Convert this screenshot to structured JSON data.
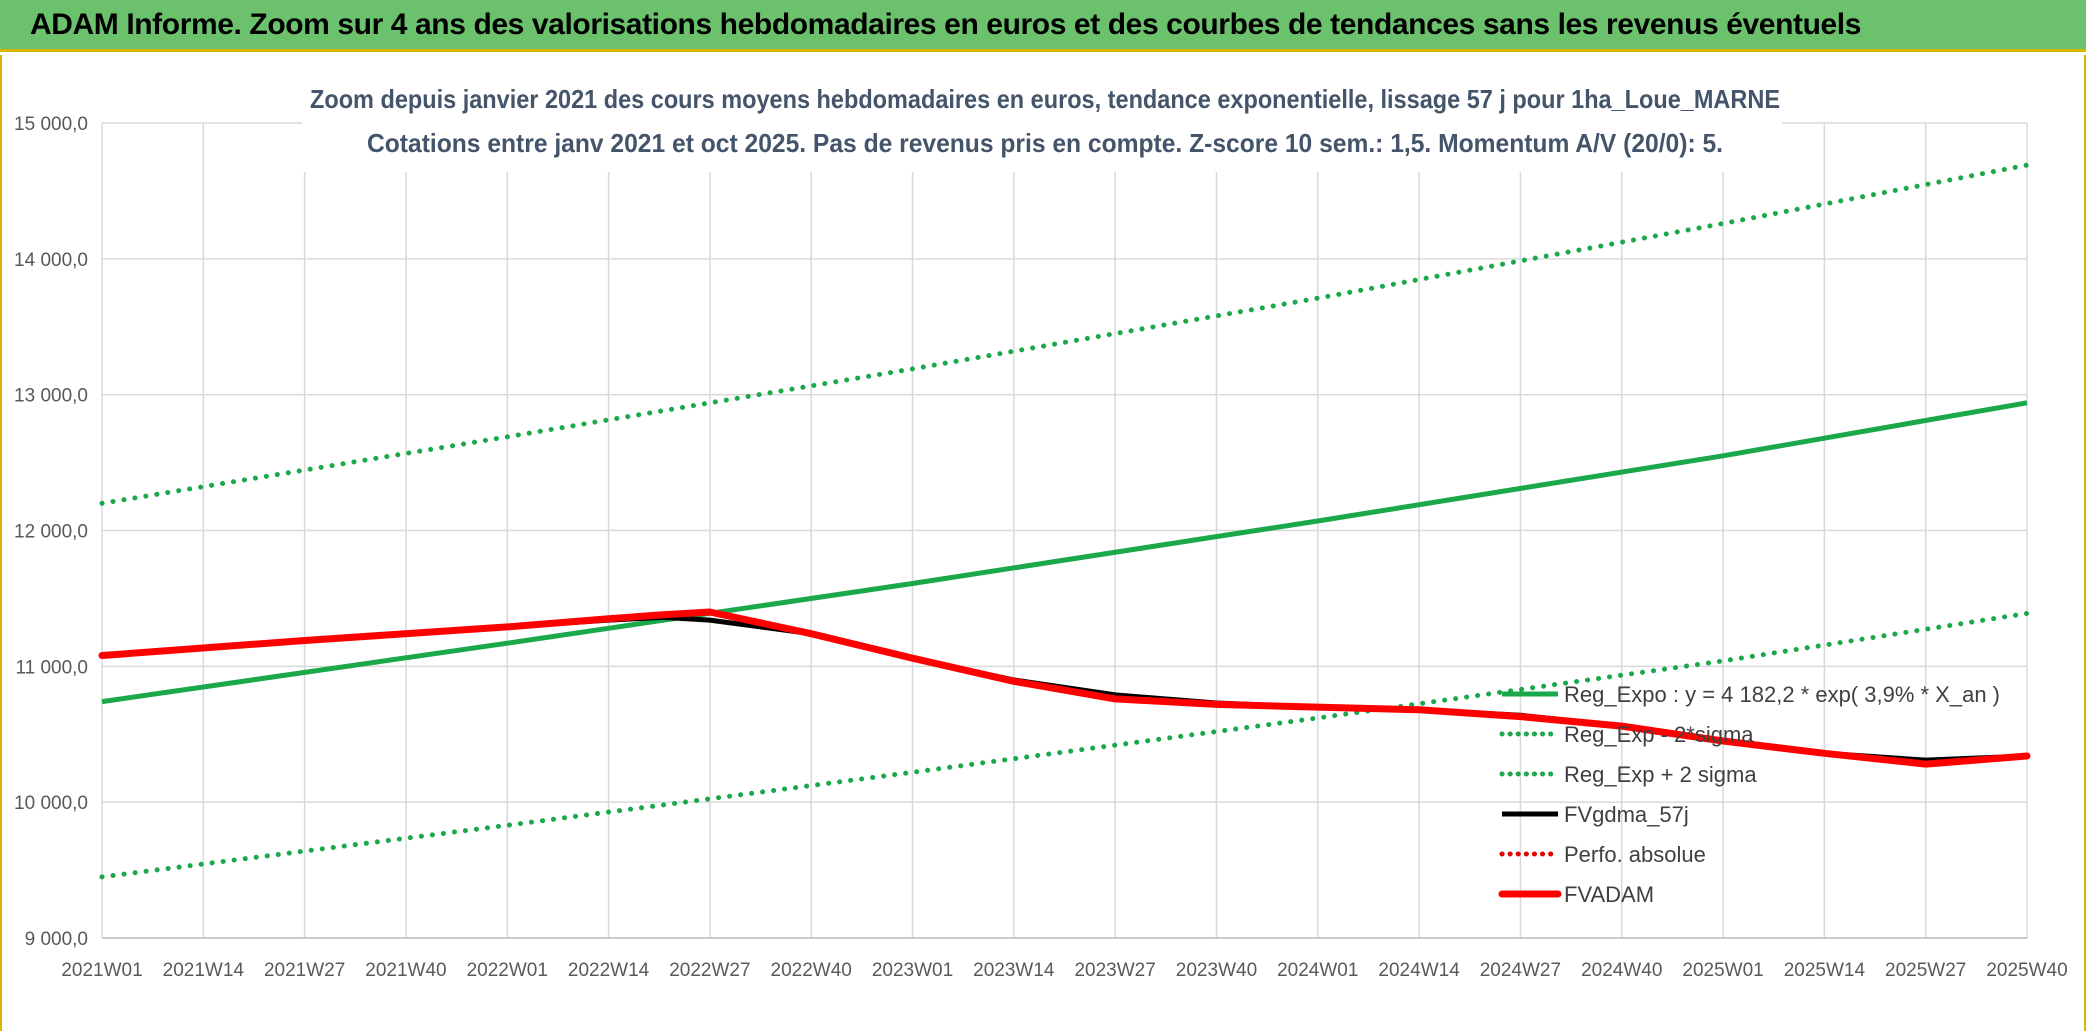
{
  "header": {
    "title": "ADAM Informe. Zoom sur 4 ans des valorisations hebdomadaires en euros et des courbes de tendances sans les revenus éventuels"
  },
  "chart_data": {
    "type": "line",
    "title": "Zoom depuis janvier 2021 des cours moyens hebdomadaires en euros, tendance exponentielle, lissage 57 j pour 1ha_Loue_MARNE",
    "subtitle": "Cotations entre janv 2021 et oct 2025. Pas de revenus pris en compte. Z-score 10 sem.: 1,5. Momentum A/V (20/0): 5.",
    "xlabel": "",
    "ylabel": "",
    "ylim": [
      9000,
      15000
    ],
    "y_ticks": [
      9000,
      10000,
      11000,
      12000,
      13000,
      14000,
      15000
    ],
    "y_tick_labels": [
      "9 000,0",
      "10 000,0",
      "11 000,0",
      "12 000,0",
      "13 000,0",
      "14 000,0",
      "15 000,0"
    ],
    "x_range": [
      0,
      247
    ],
    "x_ticks": [
      0,
      13,
      26,
      39,
      52,
      65,
      78,
      91,
      104,
      117,
      130,
      143,
      156,
      169,
      182,
      195,
      208,
      221,
      234,
      247
    ],
    "x_tick_labels": [
      "2021W01",
      "2021W14",
      "2021W27",
      "2021W40",
      "2022W01",
      "2022W14",
      "2022W27",
      "2022W40",
      "2023W01",
      "2023W14",
      "2023W27",
      "2023W40",
      "2024W01",
      "2024W14",
      "2024W27",
      "2024W40",
      "2025W01",
      "2025W14",
      "2025W27",
      "2025W40"
    ],
    "grid": true,
    "legend_position": "bottom-right",
    "series": [
      {
        "name": "Reg_Expo : y = 4 182,2 * exp( 3,9% *  X_an )",
        "style": "solid",
        "color": "#1aa84a",
        "x": [
          0,
          52,
          104,
          156,
          208,
          247
        ],
        "values": [
          10740,
          11170,
          11610,
          12070,
          12550,
          12940
        ]
      },
      {
        "name": "Reg_Exp - 2*sigma",
        "style": "dotted",
        "color": "#1aa84a",
        "x": [
          0,
          52,
          104,
          156,
          208,
          247
        ],
        "values": [
          9450,
          9830,
          10220,
          10620,
          11040,
          11390
        ]
      },
      {
        "name": "Reg_Exp + 2 sigma",
        "style": "dotted",
        "color": "#1aa84a",
        "x": [
          0,
          52,
          104,
          156,
          208,
          247
        ],
        "values": [
          12200,
          12690,
          13190,
          13710,
          14260,
          14690
        ]
      },
      {
        "name": "FVgdma_57j",
        "style": "solid",
        "color": "#000000",
        "x": [
          0,
          26,
          52,
          65,
          72,
          78,
          91,
          104,
          117,
          130,
          143,
          156,
          169,
          182,
          195,
          208,
          221,
          234,
          247
        ],
        "values": [
          11080,
          11190,
          11290,
          11340,
          11360,
          11340,
          11240,
          11060,
          10900,
          10790,
          10730,
          10700,
          10680,
          10640,
          10560,
          10450,
          10360,
          10310,
          10340
        ]
      },
      {
        "name": "Perfo. absolue",
        "style": "dotted",
        "color": "#e00000",
        "x": [],
        "values": []
      },
      {
        "name": "FVADAM",
        "style": "solid-thick",
        "color": "#ff0000",
        "x": [
          0,
          26,
          52,
          65,
          72,
          78,
          91,
          104,
          117,
          130,
          143,
          156,
          169,
          182,
          195,
          208,
          221,
          234,
          247
        ],
        "values": [
          11080,
          11190,
          11290,
          11350,
          11380,
          11400,
          11240,
          11060,
          10890,
          10760,
          10720,
          10700,
          10680,
          10630,
          10560,
          10450,
          10360,
          10280,
          10340
        ]
      }
    ]
  }
}
